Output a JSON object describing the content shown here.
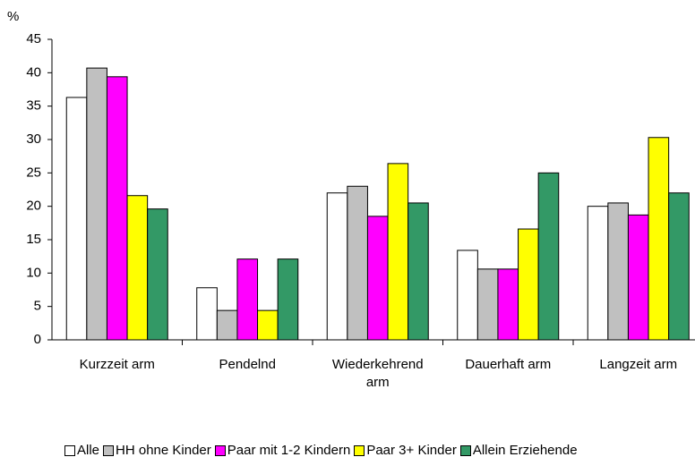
{
  "chart_data": {
    "type": "bar",
    "y_label": "%",
    "categories": [
      "Kurzzeit arm",
      "Pendelnd",
      "Wiederkehrend arm",
      "Dauerhaft arm",
      "Langzeit arm"
    ],
    "series": [
      {
        "name": "Alle",
        "color": "#ffffff",
        "values": [
          36.3,
          7.8,
          22.0,
          13.4,
          20.0
        ]
      },
      {
        "name": "HH ohne Kinder",
        "color": "#c0c0c0",
        "values": [
          40.7,
          4.4,
          23.0,
          10.6,
          20.5
        ]
      },
      {
        "name": "Paar mit 1-2 Kindern",
        "color": "#ff00ff",
        "values": [
          39.4,
          12.1,
          18.5,
          10.6,
          18.7
        ]
      },
      {
        "name": "Paar 3+ Kinder",
        "color": "#ffff00",
        "values": [
          21.6,
          4.4,
          26.4,
          16.6,
          30.3
        ]
      },
      {
        "name": "Allein Erziehende",
        "color": "#339966",
        "values": [
          19.6,
          12.1,
          20.5,
          25.0,
          22.0
        ]
      }
    ],
    "ylim": [
      0,
      45
    ],
    "yticks": [
      0,
      5,
      10,
      15,
      20,
      25,
      30,
      35,
      40,
      45
    ],
    "grid": false
  }
}
